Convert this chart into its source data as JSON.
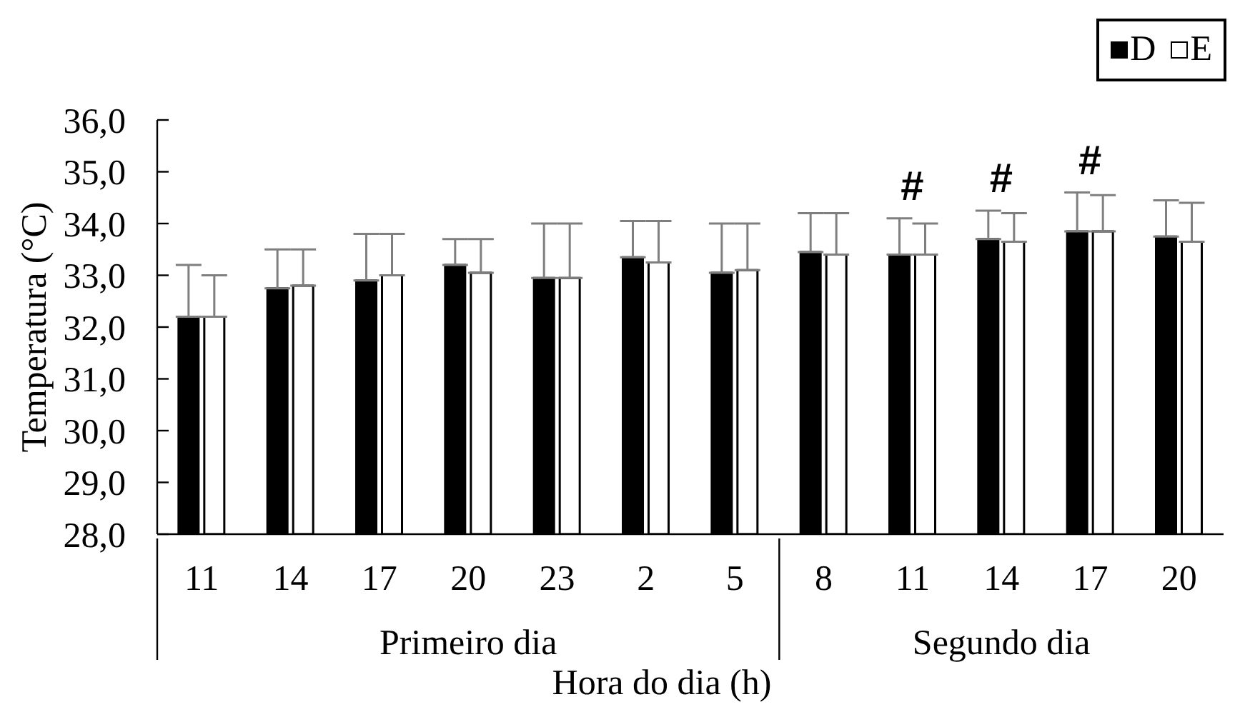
{
  "chart_data": {
    "type": "bar",
    "xlabel": "Hora do dia (h)",
    "ylabel": "Temperatura (°C)",
    "categories": [
      "11",
      "14",
      "17",
      "20",
      "23",
      "2",
      "5",
      "8",
      "11",
      "14",
      "17",
      "20"
    ],
    "series": [
      {
        "name": "D",
        "color": "#000000",
        "values": [
          32.2,
          32.75,
          32.9,
          33.2,
          32.95,
          33.35,
          33.05,
          33.45,
          33.4,
          33.7,
          33.85,
          33.75
        ],
        "errors": [
          [
            32.2,
            33.2
          ],
          [
            32.75,
            33.5
          ],
          [
            32.9,
            33.8
          ],
          [
            33.2,
            33.7
          ],
          [
            32.95,
            34.0
          ],
          [
            33.35,
            34.05
          ],
          [
            33.05,
            34.0
          ],
          [
            33.45,
            34.2
          ],
          [
            33.4,
            34.1
          ],
          [
            33.7,
            34.25
          ],
          [
            33.85,
            34.6
          ],
          [
            33.75,
            34.45
          ]
        ],
        "value_labels": [
          null,
          null,
          null,
          null,
          null,
          null,
          null,
          null,
          "#",
          "#",
          "#",
          null
        ]
      },
      {
        "name": "E",
        "color": "#ffffff",
        "values": [
          32.2,
          32.8,
          33.0,
          33.05,
          32.95,
          33.25,
          33.1,
          33.4,
          33.4,
          33.65,
          33.85,
          33.65
        ],
        "errors": [
          [
            32.2,
            33.0
          ],
          [
            32.8,
            33.5
          ],
          [
            33.0,
            33.8
          ],
          [
            33.05,
            33.7
          ],
          [
            32.95,
            34.0
          ],
          [
            33.25,
            34.05
          ],
          [
            33.1,
            34.0
          ],
          [
            33.4,
            34.2
          ],
          [
            33.4,
            34.0
          ],
          [
            33.65,
            34.2
          ],
          [
            33.85,
            34.55
          ],
          [
            33.65,
            34.4
          ]
        ]
      }
    ],
    "ylim": [
      28,
      36
    ],
    "yticks": [
      {
        "value": 28,
        "label": "28,0"
      },
      {
        "value": 29,
        "label": "29,0"
      },
      {
        "value": 30,
        "label": "30,0"
      },
      {
        "value": 31,
        "label": "31,0"
      },
      {
        "value": 32,
        "label": "32,0"
      },
      {
        "value": 33,
        "label": "33,0"
      },
      {
        "value": 34,
        "label": "34,0"
      },
      {
        "value": 35,
        "label": "35,0"
      },
      {
        "value": 36,
        "label": "36,0"
      }
    ],
    "grid": false,
    "legend": "top right",
    "annotations": [
      "Primeiro dia",
      "Segundo dia"
    ]
  }
}
